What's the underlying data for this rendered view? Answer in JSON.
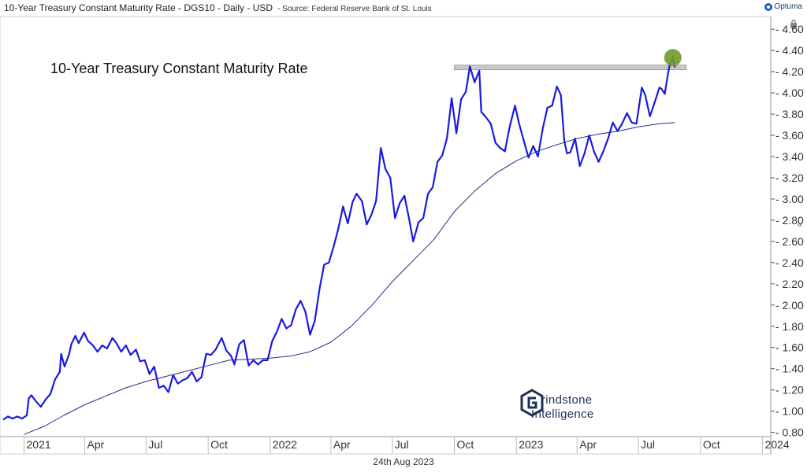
{
  "header": {
    "title": "10-Year Treasury Constant Maturity Rate - DGS10 - Daily - USD",
    "source": "- Source: Federal Reserve Bank of St. Louis",
    "brand": "Optuma"
  },
  "date_label": "24th Aug 2023",
  "logo": {
    "line1": "rindstone",
    "line2": "Intelligence"
  },
  "chart_data": {
    "type": "line",
    "title": "10-Year Treasury Constant Maturity Rate",
    "xlabel": "",
    "ylabel": "",
    "x_start": "2020-12-01",
    "x_end": "2024-01-12",
    "ylim": [
      0.76,
      4.72
    ],
    "y_ticks": [
      "0.80",
      "1.00",
      "1.20",
      "1.40",
      "1.60",
      "1.80",
      "2.00",
      "2.20",
      "2.40",
      "2.60",
      "2.80",
      "3.00",
      "3.20",
      "3.40",
      "3.60",
      "3.80",
      "4.00",
      "4.20",
      "4.40",
      "4.60"
    ],
    "x_ticks": [
      {
        "label": "2021",
        "date": "2021-01-01"
      },
      {
        "label": "Apr",
        "date": "2021-04-01"
      },
      {
        "label": "Jul",
        "date": "2021-07-01"
      },
      {
        "label": "Oct",
        "date": "2021-10-01"
      },
      {
        "label": "2022",
        "date": "2022-01-01"
      },
      {
        "label": "Apr",
        "date": "2022-04-01"
      },
      {
        "label": "Jul",
        "date": "2022-07-01"
      },
      {
        "label": "Oct",
        "date": "2022-10-01"
      },
      {
        "label": "2023",
        "date": "2023-01-01"
      },
      {
        "label": "Apr",
        "date": "2023-04-01"
      },
      {
        "label": "Jul",
        "date": "2023-07-01"
      },
      {
        "label": "Oct",
        "date": "2023-10-01"
      },
      {
        "label": "2024",
        "date": "2024-01-01"
      }
    ],
    "grid": false,
    "resistance_level": {
      "value": 4.24,
      "from": "2022-10-01",
      "to": "2023-09-10"
    },
    "breakout_marker": {
      "date": "2023-08-21",
      "value": 4.34
    },
    "colors": {
      "price": "#1a1adf",
      "average": "#2b2b8c",
      "resistance": "#c8c8c8",
      "marker": "#6f9a2a"
    },
    "series": [
      {
        "line_style": "price",
        "points": [
          [
            "2020-12-01",
            0.92
          ],
          [
            "2020-12-08",
            0.95
          ],
          [
            "2020-12-15",
            0.93
          ],
          [
            "2020-12-22",
            0.95
          ],
          [
            "2020-12-29",
            0.93
          ],
          [
            "2021-01-05",
            0.96
          ],
          [
            "2021-01-08",
            1.12
          ],
          [
            "2021-01-12",
            1.15
          ],
          [
            "2021-01-19",
            1.09
          ],
          [
            "2021-01-26",
            1.04
          ],
          [
            "2021-02-02",
            1.11
          ],
          [
            "2021-02-09",
            1.16
          ],
          [
            "2021-02-16",
            1.3
          ],
          [
            "2021-02-23",
            1.37
          ],
          [
            "2021-02-25",
            1.54
          ],
          [
            "2021-03-02",
            1.42
          ],
          [
            "2021-03-09",
            1.54
          ],
          [
            "2021-03-12",
            1.63
          ],
          [
            "2021-03-18",
            1.71
          ],
          [
            "2021-03-23",
            1.64
          ],
          [
            "2021-03-31",
            1.74
          ],
          [
            "2021-04-06",
            1.66
          ],
          [
            "2021-04-13",
            1.62
          ],
          [
            "2021-04-20",
            1.56
          ],
          [
            "2021-04-27",
            1.62
          ],
          [
            "2021-05-04",
            1.59
          ],
          [
            "2021-05-12",
            1.69
          ],
          [
            "2021-05-18",
            1.64
          ],
          [
            "2021-05-25",
            1.56
          ],
          [
            "2021-06-01",
            1.62
          ],
          [
            "2021-06-08",
            1.53
          ],
          [
            "2021-06-16",
            1.58
          ],
          [
            "2021-06-22",
            1.47
          ],
          [
            "2021-06-29",
            1.48
          ],
          [
            "2021-07-06",
            1.35
          ],
          [
            "2021-07-13",
            1.42
          ],
          [
            "2021-07-20",
            1.22
          ],
          [
            "2021-07-27",
            1.24
          ],
          [
            "2021-08-03",
            1.18
          ],
          [
            "2021-08-10",
            1.34
          ],
          [
            "2021-08-17",
            1.26
          ],
          [
            "2021-08-24",
            1.29
          ],
          [
            "2021-08-31",
            1.31
          ],
          [
            "2021-09-07",
            1.37
          ],
          [
            "2021-09-14",
            1.28
          ],
          [
            "2021-09-21",
            1.32
          ],
          [
            "2021-09-28",
            1.54
          ],
          [
            "2021-10-05",
            1.53
          ],
          [
            "2021-10-12",
            1.58
          ],
          [
            "2021-10-21",
            1.69
          ],
          [
            "2021-10-28",
            1.57
          ],
          [
            "2021-11-04",
            1.52
          ],
          [
            "2021-11-09",
            1.44
          ],
          [
            "2021-11-16",
            1.63
          ],
          [
            "2021-11-23",
            1.67
          ],
          [
            "2021-11-30",
            1.43
          ],
          [
            "2021-12-07",
            1.48
          ],
          [
            "2021-12-14",
            1.44
          ],
          [
            "2021-12-21",
            1.48
          ],
          [
            "2021-12-28",
            1.48
          ],
          [
            "2022-01-04",
            1.66
          ],
          [
            "2022-01-11",
            1.75
          ],
          [
            "2022-01-18",
            1.87
          ],
          [
            "2022-01-25",
            1.78
          ],
          [
            "2022-02-01",
            1.81
          ],
          [
            "2022-02-08",
            1.96
          ],
          [
            "2022-02-15",
            2.04
          ],
          [
            "2022-02-22",
            1.94
          ],
          [
            "2022-03-01",
            1.72
          ],
          [
            "2022-03-08",
            1.85
          ],
          [
            "2022-03-15",
            2.15
          ],
          [
            "2022-03-22",
            2.38
          ],
          [
            "2022-03-29",
            2.4
          ],
          [
            "2022-04-05",
            2.55
          ],
          [
            "2022-04-12",
            2.72
          ],
          [
            "2022-04-19",
            2.93
          ],
          [
            "2022-04-26",
            2.77
          ],
          [
            "2022-05-03",
            2.97
          ],
          [
            "2022-05-09",
            3.05
          ],
          [
            "2022-05-17",
            2.98
          ],
          [
            "2022-05-24",
            2.76
          ],
          [
            "2022-05-31",
            2.85
          ],
          [
            "2022-06-07",
            2.98
          ],
          [
            "2022-06-14",
            3.48
          ],
          [
            "2022-06-21",
            3.28
          ],
          [
            "2022-06-28",
            3.2
          ],
          [
            "2022-07-05",
            2.82
          ],
          [
            "2022-07-12",
            2.96
          ],
          [
            "2022-07-19",
            3.03
          ],
          [
            "2022-07-26",
            2.81
          ],
          [
            "2022-08-01",
            2.6
          ],
          [
            "2022-08-09",
            2.78
          ],
          [
            "2022-08-16",
            2.82
          ],
          [
            "2022-08-23",
            3.05
          ],
          [
            "2022-08-30",
            3.11
          ],
          [
            "2022-09-06",
            3.35
          ],
          [
            "2022-09-13",
            3.41
          ],
          [
            "2022-09-20",
            3.57
          ],
          [
            "2022-09-27",
            3.95
          ],
          [
            "2022-10-04",
            3.62
          ],
          [
            "2022-10-11",
            3.94
          ],
          [
            "2022-10-18",
            4.01
          ],
          [
            "2022-10-24",
            4.25
          ],
          [
            "2022-10-31",
            4.1
          ],
          [
            "2022-11-07",
            4.21
          ],
          [
            "2022-11-10",
            3.82
          ],
          [
            "2022-11-17",
            3.77
          ],
          [
            "2022-11-24",
            3.71
          ],
          [
            "2022-12-01",
            3.53
          ],
          [
            "2022-12-08",
            3.48
          ],
          [
            "2022-12-15",
            3.45
          ],
          [
            "2022-12-22",
            3.68
          ],
          [
            "2022-12-30",
            3.88
          ],
          [
            "2023-01-05",
            3.71
          ],
          [
            "2023-01-12",
            3.55
          ],
          [
            "2023-01-19",
            3.39
          ],
          [
            "2023-01-26",
            3.5
          ],
          [
            "2023-02-02",
            3.4
          ],
          [
            "2023-02-09",
            3.66
          ],
          [
            "2023-02-16",
            3.86
          ],
          [
            "2023-02-23",
            3.88
          ],
          [
            "2023-03-02",
            4.06
          ],
          [
            "2023-03-08",
            3.98
          ],
          [
            "2023-03-13",
            3.55
          ],
          [
            "2023-03-17",
            3.43
          ],
          [
            "2023-03-22",
            3.44
          ],
          [
            "2023-03-29",
            3.57
          ],
          [
            "2023-04-05",
            3.31
          ],
          [
            "2023-04-12",
            3.43
          ],
          [
            "2023-04-19",
            3.6
          ],
          [
            "2023-04-26",
            3.45
          ],
          [
            "2023-05-03",
            3.35
          ],
          [
            "2023-05-10",
            3.45
          ],
          [
            "2023-05-17",
            3.57
          ],
          [
            "2023-05-24",
            3.72
          ],
          [
            "2023-05-31",
            3.64
          ],
          [
            "2023-06-06",
            3.7
          ],
          [
            "2023-06-14",
            3.81
          ],
          [
            "2023-06-21",
            3.72
          ],
          [
            "2023-06-28",
            3.71
          ],
          [
            "2023-07-06",
            4.05
          ],
          [
            "2023-07-11",
            3.98
          ],
          [
            "2023-07-18",
            3.78
          ],
          [
            "2023-07-25",
            3.91
          ],
          [
            "2023-08-01",
            4.05
          ],
          [
            "2023-08-04",
            4.04
          ],
          [
            "2023-08-09",
            3.99
          ],
          [
            "2023-08-14",
            4.19
          ],
          [
            "2023-08-17",
            4.28
          ],
          [
            "2023-08-21",
            4.34
          ],
          [
            "2023-08-24",
            4.24
          ]
        ]
      },
      {
        "line_style": "average",
        "points": [
          [
            "2021-01-01",
            0.78
          ],
          [
            "2021-02-01",
            0.86
          ],
          [
            "2021-03-01",
            0.96
          ],
          [
            "2021-04-01",
            1.06
          ],
          [
            "2021-05-01",
            1.14
          ],
          [
            "2021-06-01",
            1.22
          ],
          [
            "2021-07-01",
            1.28
          ],
          [
            "2021-08-01",
            1.33
          ],
          [
            "2021-09-01",
            1.38
          ],
          [
            "2021-10-01",
            1.43
          ],
          [
            "2021-11-01",
            1.48
          ],
          [
            "2021-12-01",
            1.49
          ],
          [
            "2022-01-01",
            1.5
          ],
          [
            "2022-02-01",
            1.52
          ],
          [
            "2022-03-01",
            1.56
          ],
          [
            "2022-04-01",
            1.65
          ],
          [
            "2022-05-01",
            1.8
          ],
          [
            "2022-06-01",
            2.0
          ],
          [
            "2022-07-01",
            2.22
          ],
          [
            "2022-08-01",
            2.42
          ],
          [
            "2022-09-01",
            2.62
          ],
          [
            "2022-10-01",
            2.88
          ],
          [
            "2022-11-01",
            3.08
          ],
          [
            "2022-12-01",
            3.24
          ],
          [
            "2023-01-01",
            3.36
          ],
          [
            "2023-02-01",
            3.45
          ],
          [
            "2023-03-01",
            3.51
          ],
          [
            "2023-04-01",
            3.57
          ],
          [
            "2023-05-01",
            3.61
          ],
          [
            "2023-06-01",
            3.64
          ],
          [
            "2023-07-01",
            3.68
          ],
          [
            "2023-08-01",
            3.71
          ],
          [
            "2023-08-24",
            3.72
          ]
        ]
      }
    ]
  }
}
